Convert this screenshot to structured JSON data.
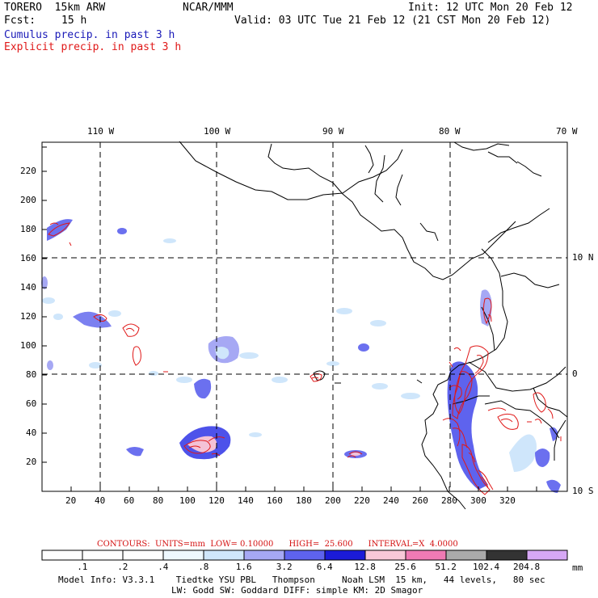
{
  "header": {
    "model": "TORERO  15km ARW",
    "org": "NCAR/MMM",
    "init": "Init: 12 UTC Mon 20 Feb 12",
    "fcst_label": "Fcst:",
    "fcst_value": "15 h",
    "valid": "Valid: 03 UTC Tue 21 Feb 12 (21 CST Mon 20 Feb 12)",
    "cumulus": "Cumulus precip. in past 3 h",
    "explicit": "Explicit precip. in past 3 h"
  },
  "map": {
    "top_lon_labels": [
      "110 W",
      "100 W",
      "90 W",
      "80 W",
      "70 W"
    ],
    "right_lat_labels": [
      "10 N",
      "0",
      "10 S"
    ],
    "x_ticks": [
      "20",
      "40",
      "60",
      "80",
      "100",
      "120",
      "140",
      "160",
      "180",
      "200",
      "220",
      "240",
      "260",
      "280",
      "300",
      "320"
    ],
    "y_ticks": [
      "20",
      "40",
      "60",
      "80",
      "100",
      "120",
      "140",
      "160",
      "180",
      "200",
      "220"
    ]
  },
  "contours_line": "CONTOURS:  UNITS=mm  LOW= 0.10000      HIGH=  25.600      INTERVAL=X  4.0000",
  "colorbar": {
    "labels": [
      ".1",
      ".2",
      ".4",
      ".8",
      "1.6",
      "3.2",
      "6.4",
      "12.8",
      "25.6",
      "51.2",
      "102.4",
      "204.8"
    ],
    "unit": "mm",
    "colors": [
      "#ffffff",
      "#ffffff",
      "#ffffff",
      "#eef8ff",
      "#cfe6fb",
      "#a6a8f4",
      "#5e63ee",
      "#1b1bd8",
      "#f8c8d8",
      "#f07ab4",
      "#aaaaaa",
      "#333333",
      "#d7a8f5"
    ]
  },
  "footer": {
    "line1": "Model Info: V3.3.1    Tiedtke YSU PBL   Thompson     Noah LSM  15 km,   44 levels,   80 sec",
    "line2": "LW: Godd SW: Goddard DIFF: simple KM: 2D Smagor"
  }
}
